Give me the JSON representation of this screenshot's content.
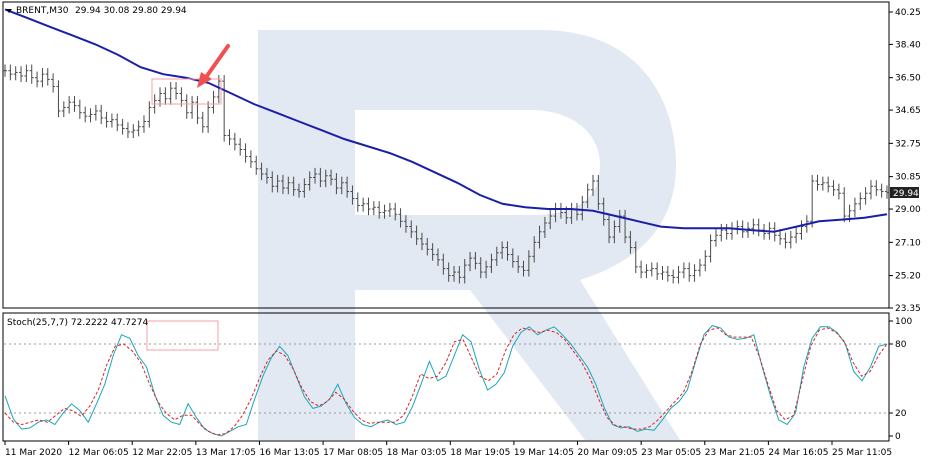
{
  "header": {
    "symbol": "BRENT,M30",
    "ohlc": "29.94 30.08 29.80 29.94"
  },
  "stoch_header": "Stoch(25,7,7) 72.2222 47.7274",
  "colors": {
    "price_bars": "#4a4a4a",
    "ma_line": "#1b1fa8",
    "stoch_main": "#17a8b8",
    "stoch_signal": "#e02020",
    "highlight_box": "#f4a0a8",
    "arrow": "#f05050",
    "watermark": "#e3e9f3",
    "price_tag_bg": "#222222"
  },
  "current_price": "29.94",
  "chart_data": [
    {
      "type": "line",
      "title": "BRENT,M30",
      "ylim": [
        23.35,
        40.25
      ],
      "y_ticks": [
        "40.25",
        "38.40",
        "36.50",
        "34.65",
        "32.75",
        "30.85",
        "29.00",
        "27.10",
        "25.20",
        "23.35"
      ],
      "x_ticks": [
        "11 Mar 2020",
        "12 Mar 06:05",
        "12 Mar 22:05",
        "13 Mar 17:05",
        "16 Mar 13:05",
        "17 Mar 08:05",
        "18 Mar 03:05",
        "18 Mar 19:05",
        "19 Mar 14:05",
        "20 Mar 09:05",
        "23 Mar 05:05",
        "23 Mar 21:05",
        "24 Mar 16:05",
        "25 Mar 11:05"
      ],
      "series": [
        {
          "kind": "ohlc-bars",
          "values": [
            36.9,
            36.7,
            36.8,
            36.6,
            36.9,
            36.5,
            36.3,
            36.7,
            36.4,
            36.0,
            34.6,
            34.8,
            35.1,
            34.9,
            34.5,
            34.3,
            34.4,
            34.6,
            34.2,
            34.0,
            34.1,
            33.8,
            33.6,
            33.4,
            33.5,
            33.7,
            34.0,
            34.8,
            35.2,
            35.6,
            35.3,
            35.9,
            35.6,
            35.2,
            34.5,
            35.1,
            34.2,
            33.7,
            34.8,
            35.4,
            36.3,
            33.2,
            33.0,
            32.7,
            32.4,
            32.0,
            31.7,
            31.3,
            31.0,
            30.8,
            30.3,
            30.6,
            30.2,
            30.5,
            30.1,
            30.0,
            30.4,
            30.8,
            31.0,
            30.6,
            30.9,
            30.7,
            30.2,
            30.5,
            30.0,
            29.6,
            29.2,
            29.3,
            29.0,
            29.1,
            28.8,
            28.9,
            29.0,
            28.7,
            28.3,
            28.0,
            27.7,
            27.3,
            27.0,
            26.7,
            26.4,
            26.1,
            25.6,
            25.2,
            25.4,
            25.1,
            25.8,
            26.2,
            25.9,
            25.4,
            25.7,
            26.1,
            26.5,
            26.8,
            26.4,
            26.0,
            25.7,
            25.5,
            26.3,
            27.1,
            27.7,
            28.2,
            28.6,
            29.0,
            28.8,
            28.5,
            29.0,
            28.7,
            29.4,
            30.1,
            30.6,
            29.3,
            28.4,
            27.4,
            28.0,
            28.6,
            27.4,
            26.8,
            25.7,
            25.4,
            25.5,
            25.6,
            25.3,
            25.4,
            25.2,
            25.1,
            25.4,
            25.6,
            25.2,
            25.5,
            25.8,
            26.3,
            27.2,
            27.5,
            27.8,
            27.6,
            27.9,
            28.0,
            27.7,
            27.9,
            28.1,
            27.8,
            27.6,
            27.9,
            27.5,
            27.3,
            27.1,
            27.4,
            27.6,
            28.0,
            28.3,
            30.6,
            30.4,
            30.5,
            30.3,
            30.1,
            29.9,
            28.6,
            28.9,
            29.3,
            29.6,
            29.9,
            30.3,
            30.1,
            30.0,
            29.94
          ]
        },
        {
          "kind": "moving-average",
          "values": [
            40.4,
            39.9,
            39.4,
            38.9,
            38.4,
            37.8,
            37.1,
            36.7,
            36.5,
            36.2,
            35.6,
            35.0,
            34.5,
            34.0,
            33.5,
            33.0,
            32.6,
            32.2,
            31.7,
            31.1,
            30.5,
            29.8,
            29.3,
            29.1,
            29.0,
            29.0,
            28.9,
            28.6,
            28.3,
            28.0,
            27.9,
            27.9,
            27.9,
            27.8,
            27.7,
            28.0,
            28.3,
            28.4,
            28.5,
            28.7
          ]
        }
      ]
    },
    {
      "type": "line",
      "title": "Stoch(25,7,7)",
      "ylim": [
        0,
        100
      ],
      "y_ticks": [
        "100",
        "80",
        "20",
        "0"
      ],
      "series": [
        {
          "kind": "main",
          "values": [
            35,
            15,
            6,
            7,
            12,
            14,
            10,
            20,
            28,
            22,
            12,
            28,
            45,
            70,
            88,
            85,
            70,
            60,
            36,
            18,
            12,
            10,
            28,
            16,
            6,
            2,
            0,
            4,
            8,
            10,
            32,
            52,
            68,
            78,
            70,
            52,
            34,
            24,
            26,
            32,
            45,
            28,
            16,
            10,
            8,
            12,
            14,
            10,
            12,
            26,
            45,
            65,
            48,
            52,
            70,
            88,
            82,
            58,
            40,
            45,
            55,
            78,
            90,
            95,
            88,
            92,
            95,
            88,
            80,
            70,
            60,
            45,
            25,
            10,
            7,
            8,
            4,
            6,
            5,
            14,
            24,
            30,
            40,
            65,
            88,
            96,
            94,
            86,
            84,
            85,
            88,
            60,
            35,
            14,
            10,
            20,
            60,
            85,
            95,
            95,
            90,
            80,
            56,
            48,
            60,
            78,
            80
          ]
        },
        {
          "kind": "signal",
          "values": [
            20,
            12,
            10,
            12,
            14,
            12,
            18,
            24,
            22,
            17,
            26,
            40,
            62,
            78,
            80,
            74,
            64,
            46,
            30,
            20,
            14,
            18,
            18,
            10,
            4,
            1,
            2,
            8,
            18,
            32,
            50,
            66,
            74,
            70,
            58,
            42,
            30,
            26,
            30,
            38,
            32,
            22,
            14,
            11,
            12,
            12,
            12,
            18,
            34,
            54,
            50,
            52,
            64,
            82,
            84,
            68,
            52,
            48,
            54,
            74,
            88,
            94,
            92,
            90,
            92,
            90,
            84,
            74,
            64,
            50,
            32,
            16,
            9,
            8,
            6,
            6,
            8,
            14,
            22,
            30,
            38,
            56,
            80,
            92,
            94,
            88,
            86,
            86,
            86,
            68,
            44,
            22,
            14,
            18,
            48,
            78,
            92,
            94,
            90,
            82,
            64,
            52,
            56,
            70,
            80
          ]
        }
      ]
    }
  ]
}
